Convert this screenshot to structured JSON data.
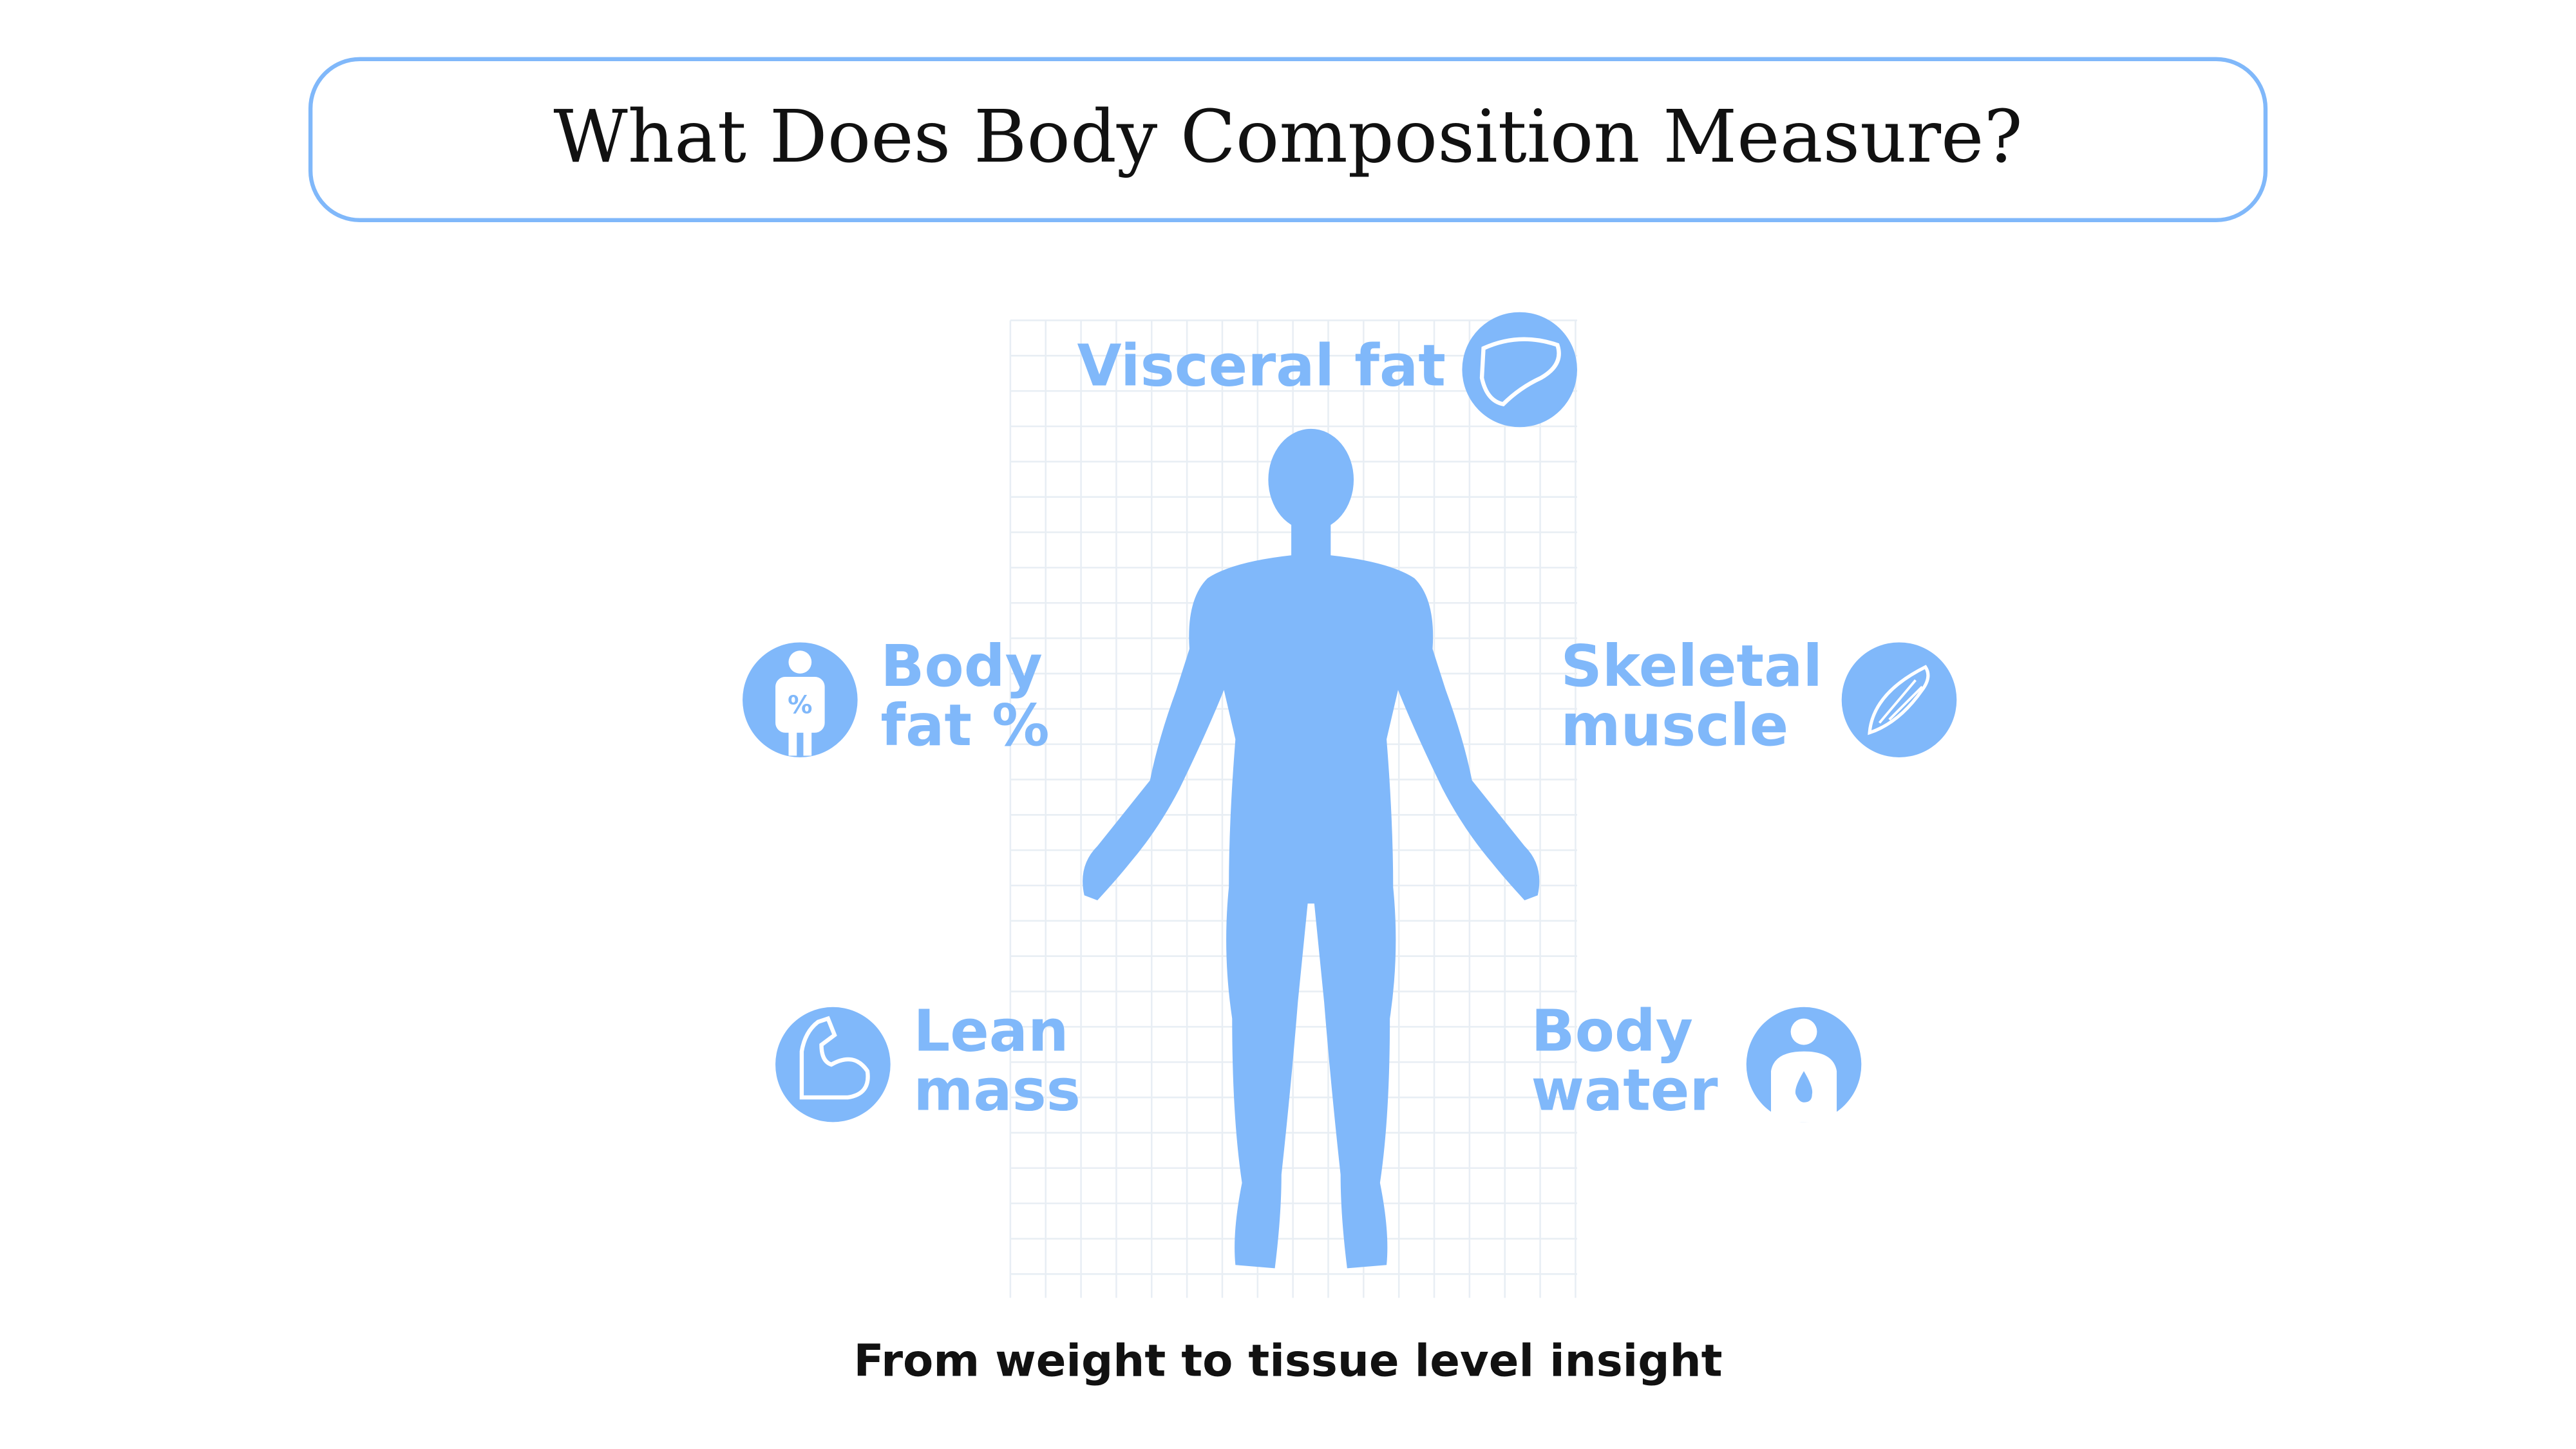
{
  "title": "What Does Body Composition Measure?",
  "items": [
    {
      "lines": [
        "Visceral fat"
      ]
    },
    {
      "lines": [
        "Body",
        "fat %"
      ]
    },
    {
      "lines": [
        "Skeletal",
        "muscle"
      ]
    },
    {
      "lines": [
        "Lean",
        "mass"
      ]
    },
    {
      "lines": [
        "Body",
        "water"
      ]
    }
  ],
  "caption": "From weight to tissue level insight"
}
